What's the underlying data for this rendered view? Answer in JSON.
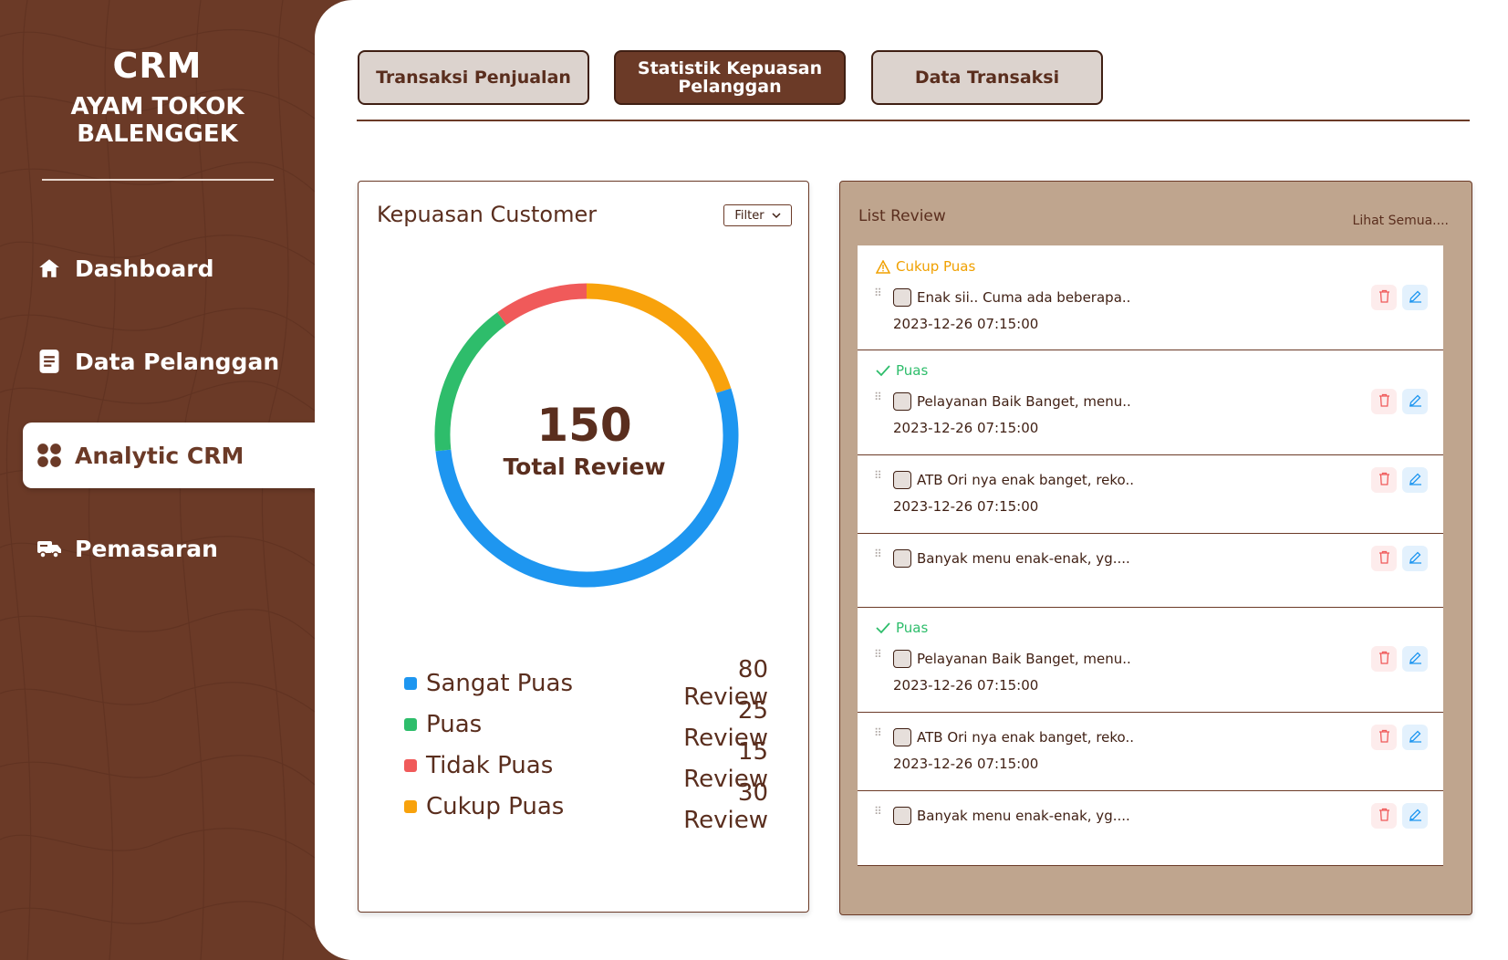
{
  "sidebar": {
    "brand_title": "CRM",
    "brand_subtitle": "AYAM TOKOK BALENGGEK",
    "items": [
      {
        "label": "Dashboard",
        "icon": "home-icon"
      },
      {
        "label": "Data Pelanggan",
        "icon": "document-icon"
      },
      {
        "label": "Analytic CRM",
        "icon": "grid-dots-icon",
        "active": true
      },
      {
        "label": "Pemasaran",
        "icon": "truck-icon"
      }
    ]
  },
  "tabs": [
    {
      "label": "Transaksi Penjualan",
      "active": false
    },
    {
      "label": "Statistik Kepuasan Pelanggan",
      "active": true
    },
    {
      "label": "Data Transaksi",
      "active": false
    }
  ],
  "satisfaction": {
    "title": "Kepuasan Customer",
    "filter_label": "Filter",
    "total": "150",
    "total_label": "Total Review",
    "legend": [
      {
        "name": "Sangat Puas",
        "count": "80 Review",
        "color": "#1e96f0"
      },
      {
        "name": "Puas",
        "count": "25 Review",
        "color": "#2ebd6b"
      },
      {
        "name": "Tidak Puas",
        "count": "15 Review",
        "color": "#f05a5a"
      },
      {
        "name": "Cukup Puas",
        "count": "30 Review",
        "color": "#f8a20c"
      }
    ]
  },
  "chart_data": {
    "type": "pie",
    "categories": [
      "Sangat Puas",
      "Puas",
      "Tidak Puas",
      "Cukup Puas"
    ],
    "values": [
      80,
      25,
      15,
      30
    ],
    "colors": [
      "#1e96f0",
      "#2ebd6b",
      "#f05a5a",
      "#f8a20c"
    ],
    "title": "Kepuasan Customer"
  },
  "reviews": {
    "title": "List Review",
    "see_all": "Lihat Semua....",
    "items": [
      {
        "status": "Cukup Puas",
        "status_type": "warn",
        "text": "Enak sii.. Cuma ada beberapa..",
        "date": "2023-12-26 07:15:00"
      },
      {
        "status": "Puas",
        "status_type": "ok",
        "text": "Pelayanan Baik Banget, menu..",
        "date": "2023-12-26 07:15:00"
      },
      {
        "status": "",
        "status_type": "",
        "text": "ATB Ori nya enak banget, reko..",
        "date": "2023-12-26 07:15:00"
      },
      {
        "status": "",
        "status_type": "",
        "text": "Banyak menu enak-enak, yg....",
        "date": ""
      },
      {
        "status": "Puas",
        "status_type": "ok",
        "text": "Pelayanan Baik Banget, menu..",
        "date": "2023-12-26 07:15:00"
      },
      {
        "status": "",
        "status_type": "",
        "text": "ATB Ori nya enak banget, reko..",
        "date": "2023-12-26 07:15:00"
      },
      {
        "status": "",
        "status_type": "",
        "text": "Banyak menu enak-enak, yg....",
        "date": ""
      }
    ]
  }
}
